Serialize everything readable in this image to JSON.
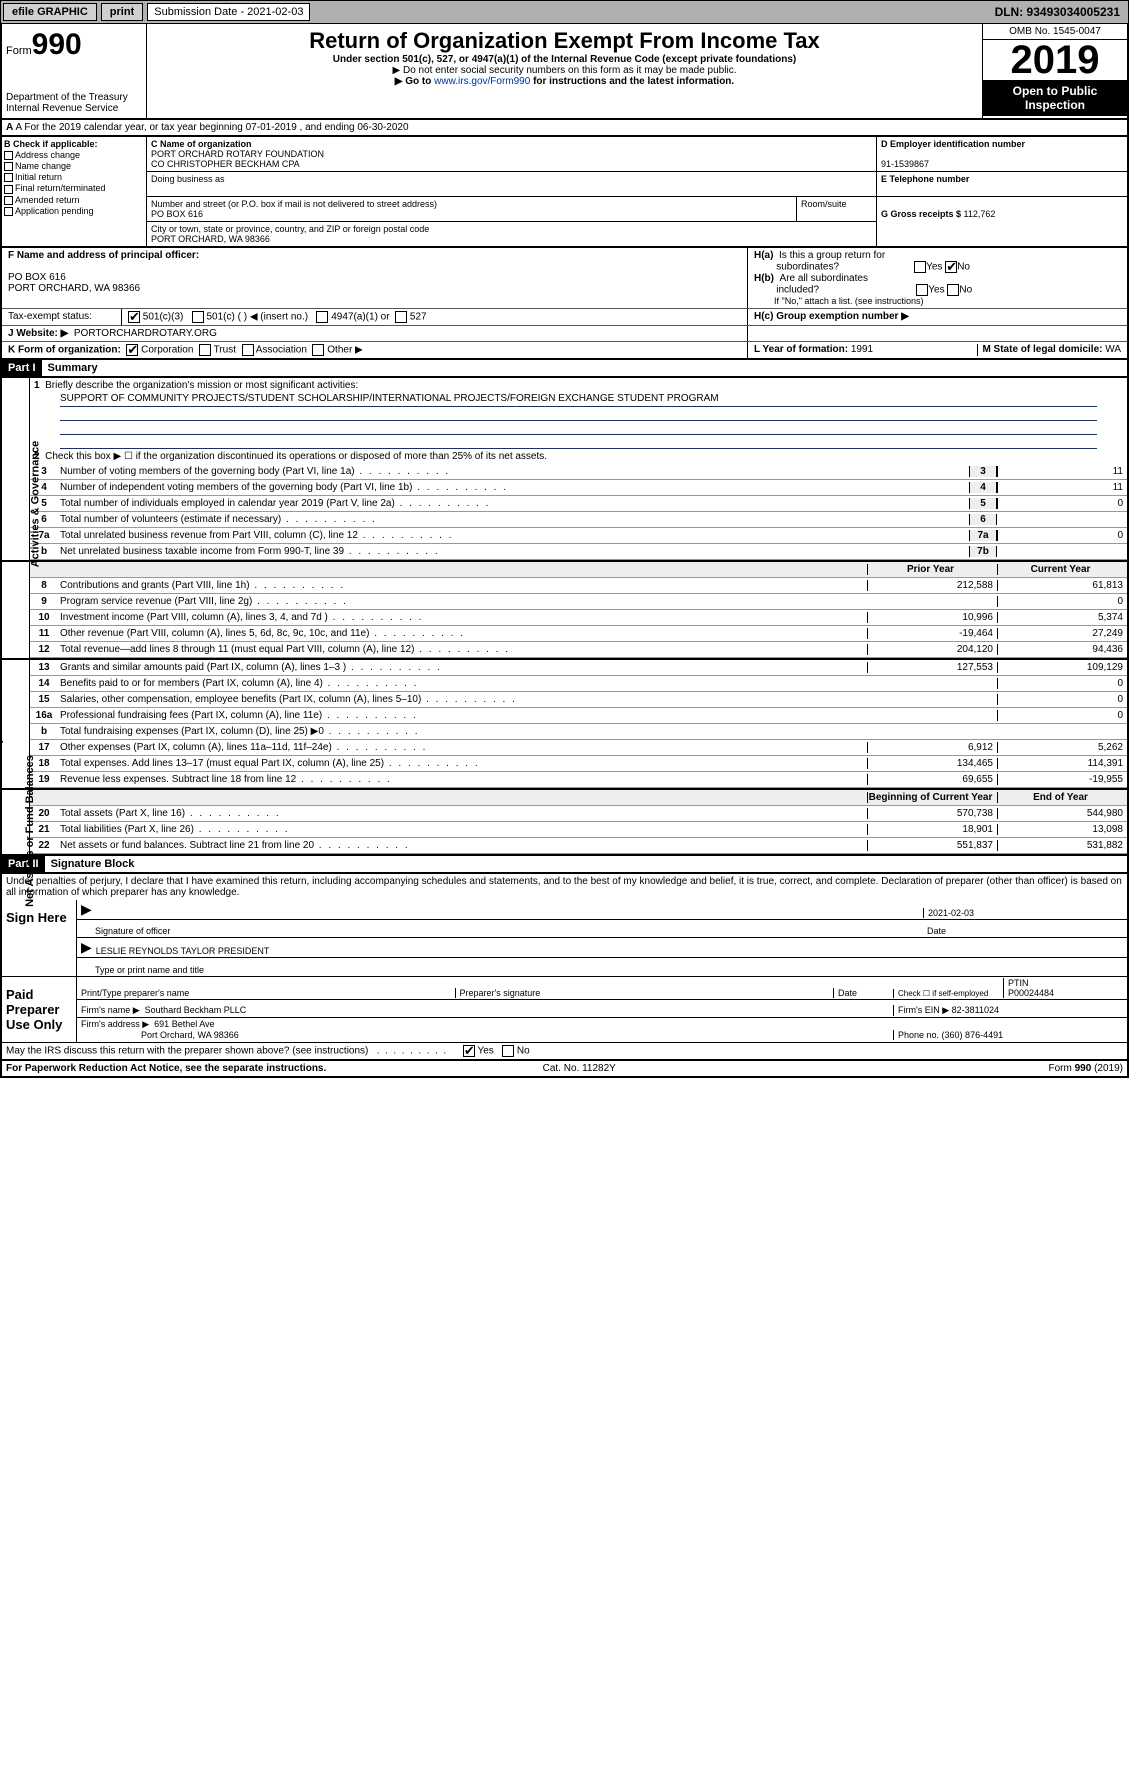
{
  "topbar": {
    "efile": "efile GRAPHIC",
    "print": "print",
    "subdate_lbl": "Submission Date - 2021-02-03",
    "dln": "DLN: 93493034005231"
  },
  "header": {
    "form_prefix": "Form",
    "form_no": "990",
    "dept": "Department of the Treasury",
    "irs": "Internal Revenue Service",
    "title": "Return of Organization Exempt From Income Tax",
    "subtitle": "Under section 501(c), 527, or 4947(a)(1) of the Internal Revenue Code (except private foundations)",
    "note1": "▶ Do not enter social security numbers on this form as it may be made public.",
    "note2_pre": "▶ Go to ",
    "note2_link": "www.irs.gov/Form990",
    "note2_post": " for instructions and the latest information.",
    "omb": "OMB No. 1545-0047",
    "year": "2019",
    "public": "Open to Public Inspection"
  },
  "row_a": "A For the 2019 calendar year, or tax year beginning 07-01-2019   , and ending 06-30-2020",
  "col_b": {
    "hdr": "B Check if applicable:",
    "opts": [
      "Address change",
      "Name change",
      "Initial return",
      "Final return/terminated",
      "Amended return",
      "Application pending"
    ]
  },
  "col_c": {
    "name_lbl": "C Name of organization",
    "name": "PORT ORCHARD ROTARY FOUNDATION",
    "name2": "CO CHRISTOPHER BECKHAM CPA",
    "dba_lbl": "Doing business as",
    "dba": "",
    "addr_lbl": "Number and street (or P.O. box if mail is not delivered to street address)",
    "room_lbl": "Room/suite",
    "addr": "PO BOX 616",
    "city_lbl": "City or town, state or province, country, and ZIP or foreign postal code",
    "city": "PORT ORCHARD, WA  98366"
  },
  "col_d": {
    "ein_lbl": "D Employer identification number",
    "ein": "91-1539867",
    "tel_lbl": "E Telephone number",
    "tel": "",
    "gross_lbl": "G Gross receipts $ ",
    "gross": "112,762"
  },
  "row_f": {
    "lbl": "F  Name and address of principal officer:",
    "addr1": "PO BOX 616",
    "addr2": "PORT ORCHARD, WA  98366"
  },
  "row_h": {
    "ha": "H(a)  Is this a group return for subordinates?",
    "hb": "H(b)  Are all subordinates included?",
    "hb_note": "If \"No,\" attach a list. (see instructions)",
    "hc": "H(c)  Group exemption number ▶",
    "yes": "Yes",
    "no": "No"
  },
  "tax_status": {
    "lbl": "Tax-exempt status:",
    "o1": "501(c)(3)",
    "o2": "501(c) (   ) ◀ (insert no.)",
    "o3": "4947(a)(1) or",
    "o4": "527"
  },
  "website": {
    "lbl": "J   Website: ▶",
    "val": "PORTORCHARDROTARY.ORG"
  },
  "row_k": {
    "lbl": "K Form of organization:",
    "o1": "Corporation",
    "o2": "Trust",
    "o3": "Association",
    "o4": "Other ▶"
  },
  "row_l": {
    "lbl": "L Year of formation: ",
    "val": "1991"
  },
  "row_m": {
    "lbl": "M State of legal domicile: ",
    "val": "WA"
  },
  "part1": {
    "tag": "Part I",
    "title": "Summary"
  },
  "summary": {
    "q1": "Briefly describe the organization's mission or most significant activities:",
    "mission": "SUPPORT OF COMMUNITY PROJECTS/STUDENT SCHOLARSHIP/INTERNATIONAL PROJECTS/FOREIGN EXCHANGE STUDENT PROGRAM",
    "q2": "Check this box ▶ ☐  if the organization discontinued its operations or disposed of more than 25% of its net assets.",
    "lines": [
      {
        "n": "3",
        "t": "Number of voting members of the governing body (Part VI, line 1a)",
        "box": "3",
        "v": "11"
      },
      {
        "n": "4",
        "t": "Number of independent voting members of the governing body (Part VI, line 1b)",
        "box": "4",
        "v": "11"
      },
      {
        "n": "5",
        "t": "Total number of individuals employed in calendar year 2019 (Part V, line 2a)",
        "box": "5",
        "v": "0"
      },
      {
        "n": "6",
        "t": "Total number of volunteers (estimate if necessary)",
        "box": "6",
        "v": ""
      },
      {
        "n": "7a",
        "t": "Total unrelated business revenue from Part VIII, column (C), line 12",
        "box": "7a",
        "v": "0"
      },
      {
        "n": "b",
        "t": "Net unrelated business taxable income from Form 990-T, line 39",
        "box": "7b",
        "v": ""
      }
    ],
    "col_hdr": {
      "prior": "Prior Year",
      "curr": "Current Year"
    },
    "rev": [
      {
        "n": "8",
        "t": "Contributions and grants (Part VIII, line 1h)",
        "p": "212,588",
        "c": "61,813"
      },
      {
        "n": "9",
        "t": "Program service revenue (Part VIII, line 2g)",
        "p": "",
        "c": "0"
      },
      {
        "n": "10",
        "t": "Investment income (Part VIII, column (A), lines 3, 4, and 7d )",
        "p": "10,996",
        "c": "5,374"
      },
      {
        "n": "11",
        "t": "Other revenue (Part VIII, column (A), lines 5, 6d, 8c, 9c, 10c, and 11e)",
        "p": "-19,464",
        "c": "27,249"
      },
      {
        "n": "12",
        "t": "Total revenue—add lines 8 through 11 (must equal Part VIII, column (A), line 12)",
        "p": "204,120",
        "c": "94,436"
      }
    ],
    "exp": [
      {
        "n": "13",
        "t": "Grants and similar amounts paid (Part IX, column (A), lines 1–3 )",
        "p": "127,553",
        "c": "109,129"
      },
      {
        "n": "14",
        "t": "Benefits paid to or for members (Part IX, column (A), line 4)",
        "p": "",
        "c": "0"
      },
      {
        "n": "15",
        "t": "Salaries, other compensation, employee benefits (Part IX, column (A), lines 5–10)",
        "p": "",
        "c": "0"
      },
      {
        "n": "16a",
        "t": "Professional fundraising fees (Part IX, column (A), line 11e)",
        "p": "",
        "c": "0"
      },
      {
        "n": "b",
        "t": "Total fundraising expenses (Part IX, column (D), line 25) ▶0",
        "p": "§",
        "c": "§"
      },
      {
        "n": "17",
        "t": "Other expenses (Part IX, column (A), lines 11a–11d, 11f–24e)",
        "p": "6,912",
        "c": "5,262"
      },
      {
        "n": "18",
        "t": "Total expenses. Add lines 13–17 (must equal Part IX, column (A), line 25)",
        "p": "134,465",
        "c": "114,391"
      },
      {
        "n": "19",
        "t": "Revenue less expenses. Subtract line 18 from line 12",
        "p": "69,655",
        "c": "-19,955"
      }
    ],
    "na_hdr": {
      "p": "Beginning of Current Year",
      "c": "End of Year"
    },
    "na": [
      {
        "n": "20",
        "t": "Total assets (Part X, line 16)",
        "p": "570,738",
        "c": "544,980"
      },
      {
        "n": "21",
        "t": "Total liabilities (Part X, line 26)",
        "p": "18,901",
        "c": "13,098"
      },
      {
        "n": "22",
        "t": "Net assets or fund balances. Subtract line 21 from line 20",
        "p": "551,837",
        "c": "531,882"
      }
    ],
    "vtabs": {
      "gov": "Activities & Governance",
      "rev": "Revenue",
      "exp": "Expenses",
      "na": "Net Assets or Fund Balances"
    }
  },
  "part2": {
    "tag": "Part II",
    "title": "Signature Block"
  },
  "sig": {
    "decl": "Under penalties of perjury, I declare that I have examined this return, including accompanying schedules and statements, and to the best of my knowledge and belief, it is true, correct, and complete. Declaration of preparer (other than officer) is based on all information of which preparer has any knowledge.",
    "sign_here": "Sign Here",
    "sig_off": "Signature of officer",
    "date_lbl": "Date",
    "date": "2021-02-03",
    "name": "LESLIE REYNOLDS TAYLOR  PRESIDENT",
    "name_lbl": "Type or print name and title",
    "paid": "Paid Preparer Use Only",
    "prep_name_lbl": "Print/Type preparer's name",
    "prep_sig_lbl": "Preparer's signature",
    "prep_date_lbl": "Date",
    "check_self": "Check ☐ if self-employed",
    "ptin_lbl": "PTIN",
    "ptin": "P00024484",
    "firm_name_lbl": "Firm's name  ▶",
    "firm_name": "Southard Beckham PLLC",
    "firm_ein_lbl": "Firm's EIN ▶",
    "firm_ein": "82-3811024",
    "firm_addr_lbl": "Firm's address ▶",
    "firm_addr": "691 Bethel Ave",
    "firm_city": "Port Orchard, WA  98366",
    "phone_lbl": "Phone no. ",
    "phone": "(360) 876-4491",
    "discuss": "May the IRS discuss this return with the preparer shown above? (see instructions)"
  },
  "footer": {
    "l": "For Paperwork Reduction Act Notice, see the separate instructions.",
    "c": "Cat. No. 11282Y",
    "r": "Form 990 (2019)"
  }
}
